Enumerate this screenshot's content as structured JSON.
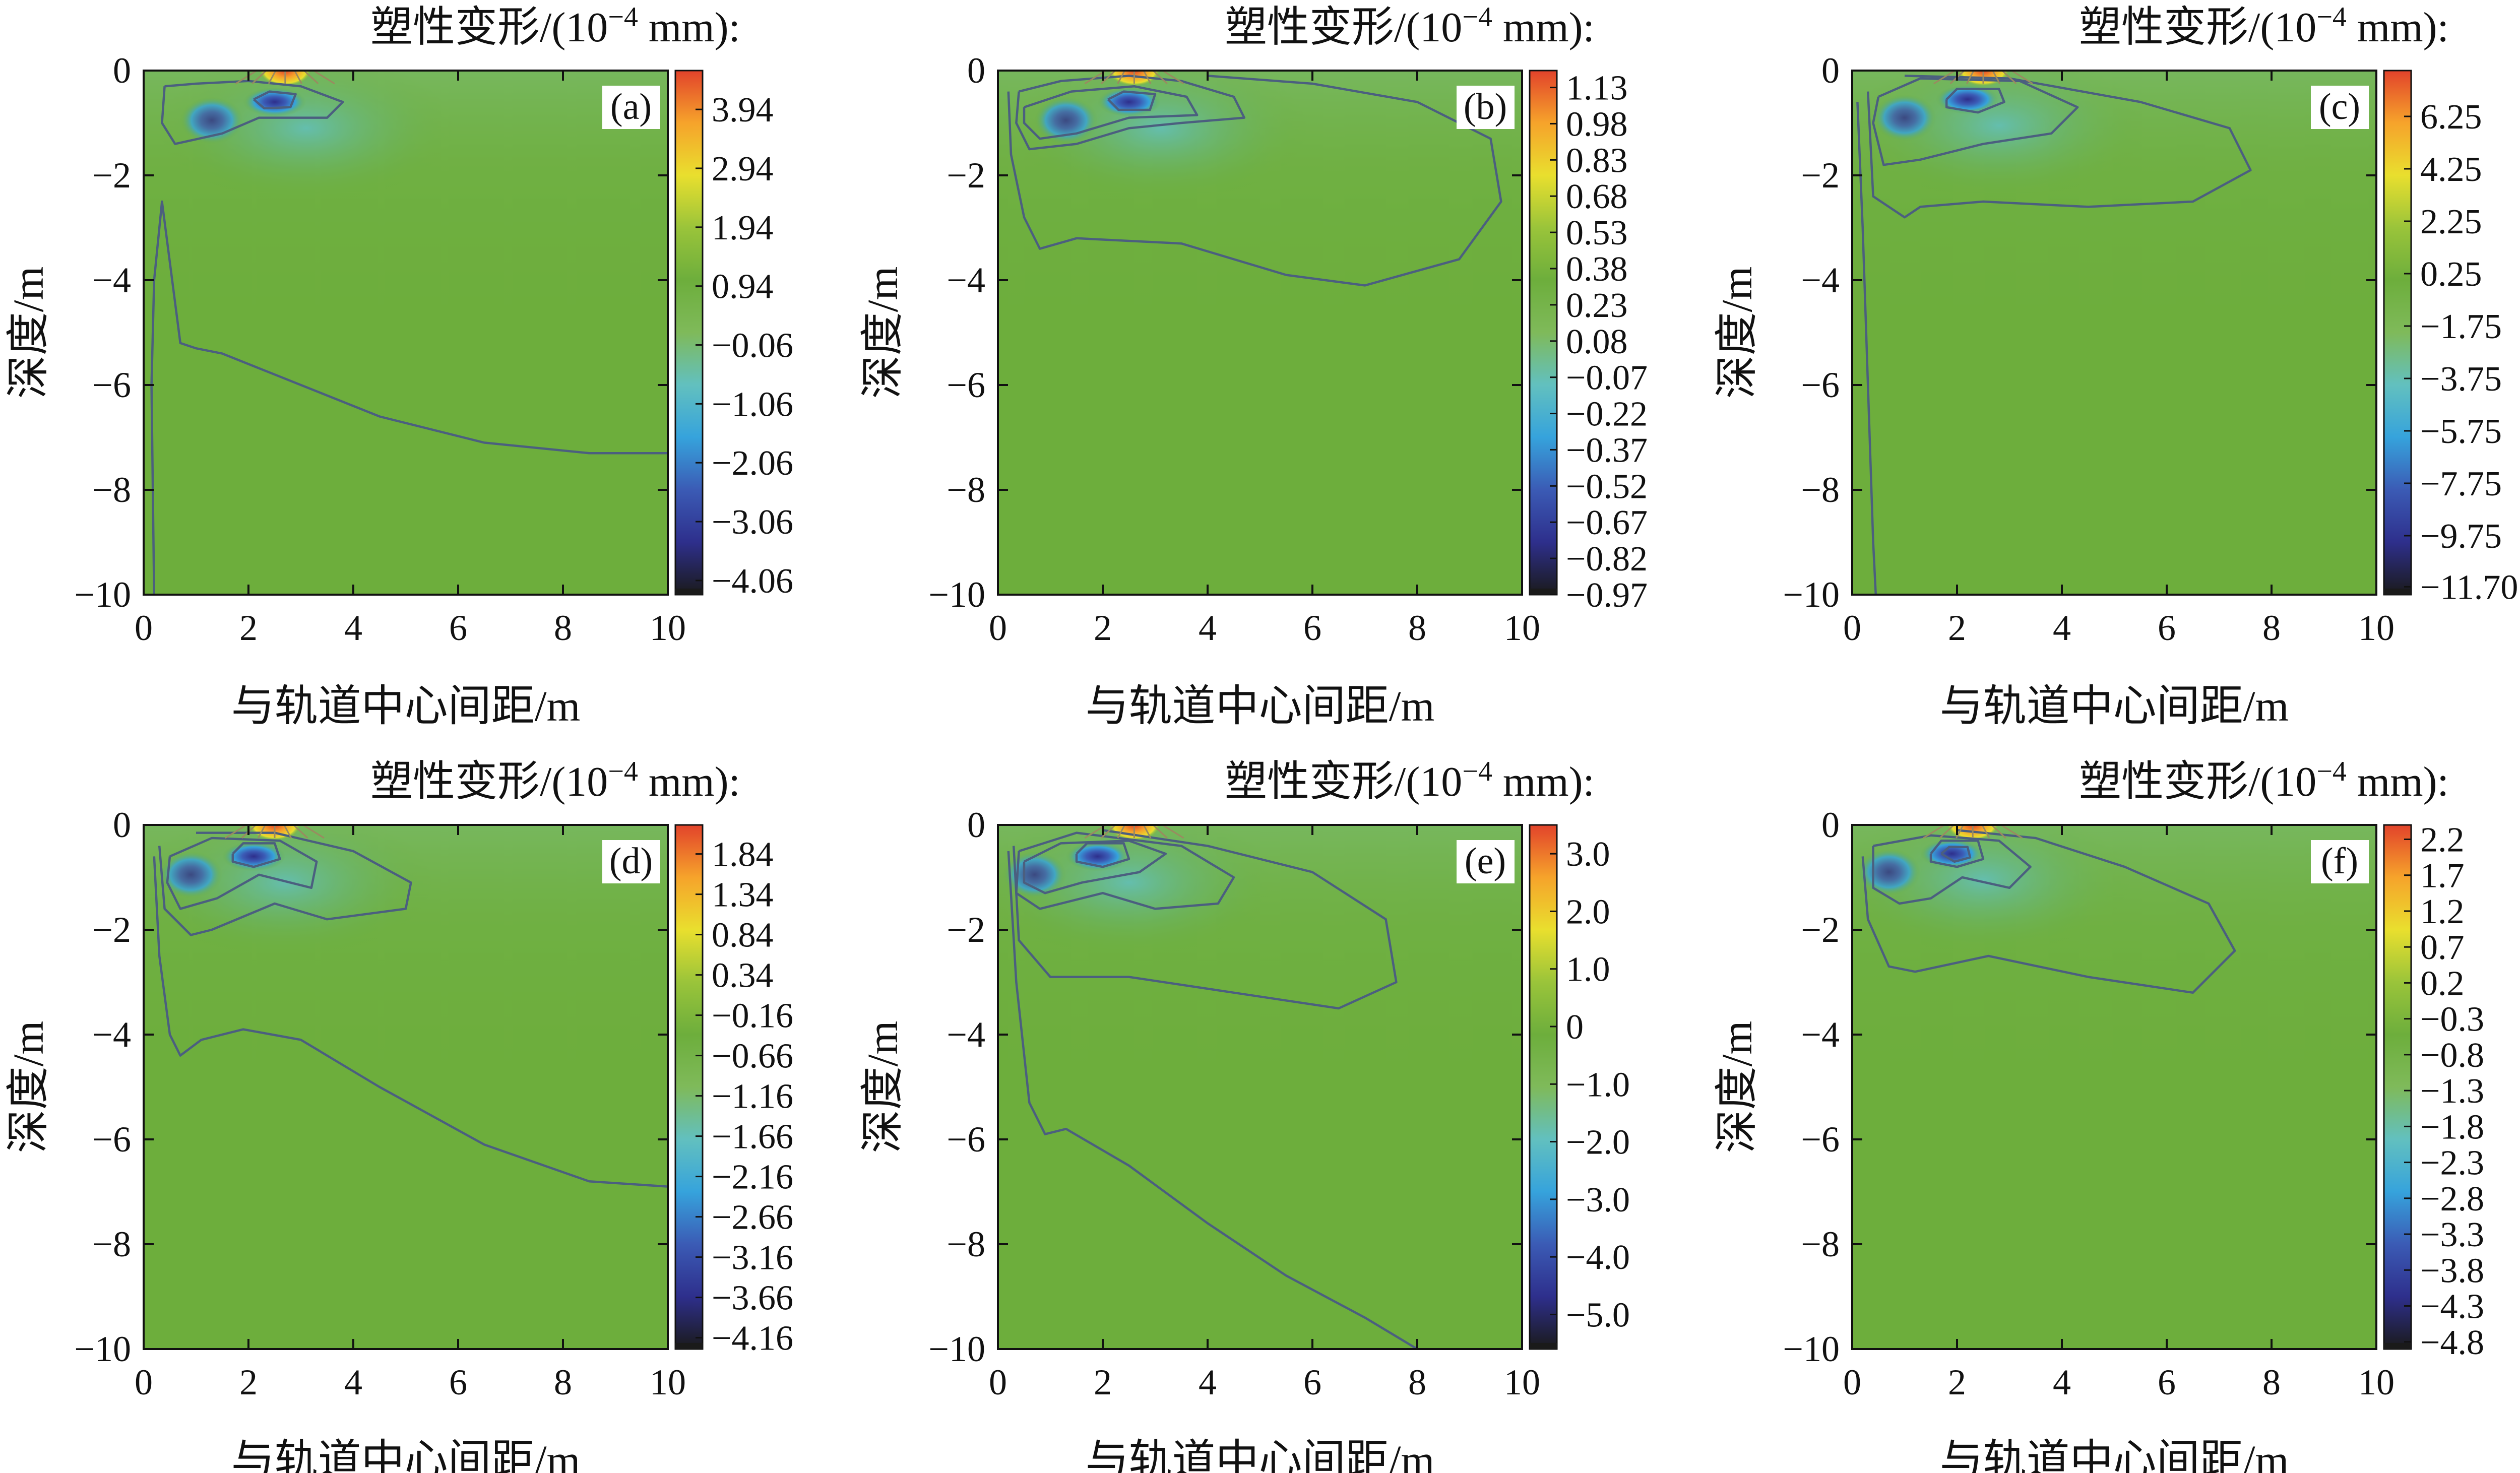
{
  "colorbar_title_prefix": "塑性变形/(10",
  "colorbar_title_exponent": "−4",
  "colorbar_title_suffix": " mm):",
  "xlabel": "与轨道中心间距/m",
  "ylabel": "深度/m",
  "x_ticks": [
    "0",
    "2",
    "4",
    "6",
    "8",
    "10"
  ],
  "y_ticks": [
    "0",
    "−2",
    "−4",
    "−6",
    "−8",
    "−10"
  ],
  "colors": {
    "background_field": "#6dae3c",
    "contour_line": "#4b5f7f",
    "colormap": [
      "#1a1a1a",
      "#2e2f8c",
      "#3b5bb5",
      "#36a3dc",
      "#62c0bf",
      "#7fba5a",
      "#6dae3c",
      "#9ac43a",
      "#e9df2e",
      "#f6a32b",
      "#e2432b"
    ]
  },
  "chart_data": [
    {
      "type": "heatmap",
      "panel": "(a)",
      "xlabel": "与轨道中心间距/m",
      "ylabel": "深度/m",
      "xlim": [
        0,
        10
      ],
      "ylim": [
        -10,
        0
      ],
      "colorbar_ticks": [
        "3.94",
        "2.94",
        "1.94",
        "0.94",
        "−0.06",
        "−1.06",
        "−2.06",
        "−3.06",
        "−4.06"
      ],
      "colorbar_range": [
        -4.3,
        4.6
      ],
      "minimum": {
        "x": 2.5,
        "depth": -0.6,
        "value": -4.06
      },
      "maximum": {
        "x": 2.7,
        "depth": 0.0,
        "value": 3.94
      },
      "contours": [
        [
          [
            0.2,
            -10
          ],
          [
            0.15,
            -6
          ],
          [
            0.2,
            -4
          ],
          [
            0.35,
            -2.5
          ],
          [
            0.7,
            -5.2
          ],
          [
            1.0,
            -5.3
          ],
          [
            1.5,
            -5.4
          ],
          [
            2.5,
            -5.8
          ],
          [
            4.5,
            -6.6
          ],
          [
            6.5,
            -7.1
          ],
          [
            8.5,
            -7.3
          ],
          [
            10.0,
            -7.3
          ]
        ],
        [
          [
            0.4,
            -0.3
          ],
          [
            0.35,
            -1.0
          ],
          [
            0.6,
            -1.4
          ],
          [
            1.5,
            -1.2
          ],
          [
            2.2,
            -0.9
          ],
          [
            3.5,
            -0.9
          ],
          [
            3.8,
            -0.6
          ],
          [
            3.0,
            -0.3
          ],
          [
            2.0,
            -0.2
          ],
          [
            1.0,
            -0.25
          ],
          [
            0.4,
            -0.3
          ]
        ],
        [
          [
            2.1,
            -0.55
          ],
          [
            2.4,
            -0.4
          ],
          [
            2.9,
            -0.45
          ],
          [
            2.8,
            -0.7
          ],
          [
            2.3,
            -0.72
          ],
          [
            2.1,
            -0.55
          ]
        ]
      ]
    },
    {
      "type": "heatmap",
      "panel": "(b)",
      "xlabel": "与轨道中心间距/m",
      "ylabel": "深度/m",
      "xlim": [
        0,
        10
      ],
      "ylim": [
        -10,
        0
      ],
      "colorbar_ticks": [
        "1.13",
        "0.98",
        "0.83",
        "0.68",
        "0.53",
        "0.38",
        "0.23",
        "0.08",
        "−0.07",
        "−0.22",
        "−0.37",
        "−0.52",
        "−0.67",
        "−0.82",
        "−0.97"
      ],
      "colorbar_range": [
        -0.97,
        1.2
      ],
      "minimum": {
        "x": 2.5,
        "depth": -0.6,
        "value": -0.97
      },
      "maximum": {
        "x": 2.6,
        "depth": 0.0,
        "value": 1.13
      },
      "contours": [
        [
          [
            0.2,
            -0.4
          ],
          [
            0.25,
            -1.6
          ],
          [
            0.5,
            -2.8
          ],
          [
            0.8,
            -3.4
          ],
          [
            1.5,
            -3.2
          ],
          [
            3.5,
            -3.3
          ],
          [
            5.5,
            -3.9
          ],
          [
            7.0,
            -4.1
          ],
          [
            8.8,
            -3.6
          ],
          [
            9.6,
            -2.5
          ],
          [
            9.4,
            -1.3
          ],
          [
            8.0,
            -0.6
          ],
          [
            6.0,
            -0.25
          ],
          [
            4.0,
            -0.1
          ]
        ],
        [
          [
            0.4,
            -0.4
          ],
          [
            0.35,
            -1.0
          ],
          [
            0.6,
            -1.5
          ],
          [
            1.5,
            -1.4
          ],
          [
            2.5,
            -1.1
          ],
          [
            3.5,
            -1.0
          ],
          [
            4.7,
            -0.9
          ],
          [
            4.5,
            -0.5
          ],
          [
            3.5,
            -0.2
          ],
          [
            2.5,
            -0.1
          ],
          [
            1.2,
            -0.2
          ],
          [
            0.4,
            -0.4
          ]
        ],
        [
          [
            0.5,
            -0.7
          ],
          [
            0.5,
            -1.0
          ],
          [
            0.8,
            -1.3
          ],
          [
            1.5,
            -1.2
          ],
          [
            2.5,
            -0.9
          ],
          [
            3.8,
            -0.85
          ],
          [
            3.6,
            -0.5
          ],
          [
            2.6,
            -0.3
          ],
          [
            1.4,
            -0.4
          ],
          [
            0.5,
            -0.7
          ]
        ],
        [
          [
            2.1,
            -0.55
          ],
          [
            2.4,
            -0.4
          ],
          [
            3.0,
            -0.45
          ],
          [
            2.9,
            -0.75
          ],
          [
            2.3,
            -0.75
          ],
          [
            2.1,
            -0.55
          ]
        ]
      ]
    },
    {
      "type": "heatmap",
      "panel": "(c)",
      "xlabel": "与轨道中心间距/m",
      "ylabel": "深度/m",
      "xlim": [
        0,
        10
      ],
      "ylim": [
        -10,
        0
      ],
      "colorbar_ticks": [
        "6.25",
        "4.25",
        "2.25",
        "0.25",
        "−1.75",
        "−3.75",
        "−5.75",
        "−7.75",
        "−9.75",
        "−11.70"
      ],
      "colorbar_range": [
        -12.0,
        8.0
      ],
      "minimum": {
        "x": 2.2,
        "depth": -0.55,
        "value": -11.7
      },
      "maximum": {
        "x": 2.5,
        "depth": 0.0,
        "value": 6.25
      },
      "contours": [
        [
          [
            0.1,
            -0.6
          ],
          [
            0.2,
            -3.0
          ],
          [
            0.3,
            -6.0
          ],
          [
            0.4,
            -9.0
          ],
          [
            0.45,
            -10.0
          ]
        ],
        [
          [
            0.3,
            -0.4
          ],
          [
            0.4,
            -2.4
          ],
          [
            1.0,
            -2.8
          ],
          [
            1.3,
            -2.6
          ],
          [
            2.5,
            -2.5
          ],
          [
            4.5,
            -2.6
          ],
          [
            6.5,
            -2.5
          ],
          [
            7.6,
            -1.9
          ],
          [
            7.2,
            -1.1
          ],
          [
            5.5,
            -0.6
          ],
          [
            3.0,
            -0.15
          ],
          [
            1.0,
            -0.1
          ]
        ],
        [
          [
            0.5,
            -0.5
          ],
          [
            0.4,
            -1.0
          ],
          [
            0.6,
            -1.8
          ],
          [
            1.3,
            -1.7
          ],
          [
            2.5,
            -1.4
          ],
          [
            3.8,
            -1.2
          ],
          [
            4.3,
            -0.7
          ],
          [
            3.2,
            -0.2
          ],
          [
            1.3,
            -0.15
          ],
          [
            0.5,
            -0.5
          ]
        ],
        [
          [
            1.8,
            -0.55
          ],
          [
            2.0,
            -0.35
          ],
          [
            2.8,
            -0.35
          ],
          [
            2.9,
            -0.6
          ],
          [
            2.4,
            -0.8
          ],
          [
            1.8,
            -0.7
          ],
          [
            1.8,
            -0.55
          ]
        ]
      ]
    },
    {
      "type": "heatmap",
      "panel": "(d)",
      "xlabel": "与轨道中心间距/m",
      "ylabel": "深度/m",
      "xlim": [
        0,
        10
      ],
      "ylim": [
        -10,
        0
      ],
      "colorbar_ticks": [
        "1.84",
        "1.34",
        "0.84",
        "0.34",
        "−0.16",
        "−0.66",
        "−1.16",
        "−1.66",
        "−2.16",
        "−2.66",
        "−3.16",
        "−3.66",
        "−4.16"
      ],
      "colorbar_range": [
        -4.3,
        2.2
      ],
      "minimum": {
        "x": 2.1,
        "depth": -0.6,
        "value": -4.16
      },
      "maximum": {
        "x": 2.5,
        "depth": 0.0,
        "value": 1.84
      },
      "contours": [
        [
          [
            0.2,
            -0.6
          ],
          [
            0.3,
            -2.5
          ],
          [
            0.5,
            -4.0
          ],
          [
            0.7,
            -4.4
          ],
          [
            1.1,
            -4.1
          ],
          [
            1.9,
            -3.9
          ],
          [
            3.0,
            -4.1
          ],
          [
            4.5,
            -5.0
          ],
          [
            6.5,
            -6.1
          ],
          [
            8.5,
            -6.8
          ],
          [
            10.0,
            -6.9
          ]
        ],
        [
          [
            0.3,
            -0.4
          ],
          [
            0.4,
            -1.6
          ],
          [
            0.9,
            -2.1
          ],
          [
            1.3,
            -2.0
          ],
          [
            2.5,
            -1.5
          ],
          [
            3.5,
            -1.8
          ],
          [
            5.0,
            -1.6
          ],
          [
            5.1,
            -1.1
          ],
          [
            4.0,
            -0.5
          ],
          [
            2.5,
            -0.15
          ],
          [
            1.0,
            -0.15
          ]
        ],
        [
          [
            0.5,
            -0.6
          ],
          [
            0.45,
            -1.1
          ],
          [
            0.7,
            -1.6
          ],
          [
            1.4,
            -1.4
          ],
          [
            2.2,
            -0.95
          ],
          [
            3.2,
            -1.2
          ],
          [
            3.3,
            -0.7
          ],
          [
            2.6,
            -0.3
          ],
          [
            1.3,
            -0.25
          ],
          [
            0.5,
            -0.6
          ]
        ],
        [
          [
            1.7,
            -0.55
          ],
          [
            1.9,
            -0.35
          ],
          [
            2.5,
            -0.35
          ],
          [
            2.6,
            -0.65
          ],
          [
            2.1,
            -0.8
          ],
          [
            1.7,
            -0.7
          ],
          [
            1.7,
            -0.55
          ]
        ]
      ]
    },
    {
      "type": "heatmap",
      "panel": "(e)",
      "xlabel": "与轨道中心间距/m",
      "ylabel": "深度/m",
      "xlim": [
        0,
        10
      ],
      "ylim": [
        -10,
        0
      ],
      "colorbar_ticks": [
        "3.0",
        "2.0",
        "1.0",
        "0",
        "−1.0",
        "−2.0",
        "−3.0",
        "−4.0",
        "−5.0"
      ],
      "colorbar_range": [
        -5.6,
        3.5
      ],
      "minimum": {
        "x": 1.9,
        "depth": -0.6,
        "value": -5.0
      },
      "maximum": {
        "x": 2.6,
        "depth": 0.0,
        "value": 3.0
      },
      "contours": [
        [
          [
            0.2,
            -0.5
          ],
          [
            0.35,
            -3.0
          ],
          [
            0.6,
            -5.3
          ],
          [
            0.9,
            -5.9
          ],
          [
            1.3,
            -5.8
          ],
          [
            2.5,
            -6.5
          ],
          [
            4.0,
            -7.6
          ],
          [
            5.5,
            -8.6
          ],
          [
            7.0,
            -9.4
          ],
          [
            8.0,
            -10.0
          ]
        ],
        [
          [
            0.3,
            -0.4
          ],
          [
            0.4,
            -2.2
          ],
          [
            1.0,
            -2.9
          ],
          [
            2.5,
            -2.9
          ],
          [
            4.5,
            -3.2
          ],
          [
            6.5,
            -3.5
          ],
          [
            7.6,
            -3.0
          ],
          [
            7.4,
            -1.8
          ],
          [
            6.0,
            -0.9
          ],
          [
            4.0,
            -0.4
          ],
          [
            2.0,
            -0.1
          ]
        ],
        [
          [
            0.4,
            -0.5
          ],
          [
            0.35,
            -1.3
          ],
          [
            0.8,
            -1.6
          ],
          [
            2.0,
            -1.3
          ],
          [
            3.0,
            -1.6
          ],
          [
            4.2,
            -1.5
          ],
          [
            4.5,
            -1.0
          ],
          [
            3.5,
            -0.4
          ],
          [
            1.5,
            -0.15
          ],
          [
            0.4,
            -0.5
          ]
        ],
        [
          [
            0.5,
            -0.7
          ],
          [
            0.5,
            -1.1
          ],
          [
            0.9,
            -1.3
          ],
          [
            1.6,
            -1.1
          ],
          [
            2.7,
            -0.9
          ],
          [
            3.2,
            -0.55
          ],
          [
            2.5,
            -0.3
          ],
          [
            1.2,
            -0.35
          ],
          [
            0.5,
            -0.7
          ]
        ],
        [
          [
            1.5,
            -0.55
          ],
          [
            1.7,
            -0.35
          ],
          [
            2.4,
            -0.35
          ],
          [
            2.5,
            -0.65
          ],
          [
            2.0,
            -0.8
          ],
          [
            1.5,
            -0.7
          ],
          [
            1.5,
            -0.55
          ]
        ]
      ]
    },
    {
      "type": "heatmap",
      "panel": "(f)",
      "xlabel": "与轨道中心间距/m",
      "ylabel": "深度/m",
      "xlim": [
        0,
        10
      ],
      "ylim": [
        -10,
        0
      ],
      "colorbar_ticks": [
        "2.2",
        "1.7",
        "1.2",
        "0.7",
        "0.2",
        "−0.3",
        "−0.8",
        "−1.3",
        "−1.8",
        "−2.3",
        "−2.8",
        "−3.3",
        "−3.8",
        "−4.3",
        "−4.8"
      ],
      "colorbar_range": [
        -4.9,
        2.4
      ],
      "minimum": {
        "x": 1.9,
        "depth": -0.55,
        "value": -4.8
      },
      "maximum": {
        "x": 2.3,
        "depth": 0.0,
        "value": 2.2
      },
      "contours": [
        [
          [
            0.2,
            -0.6
          ],
          [
            0.3,
            -1.8
          ],
          [
            0.7,
            -2.7
          ],
          [
            1.2,
            -2.8
          ],
          [
            2.6,
            -2.5
          ],
          [
            4.5,
            -2.9
          ],
          [
            6.5,
            -3.2
          ],
          [
            7.3,
            -2.4
          ],
          [
            6.8,
            -1.5
          ],
          [
            5.2,
            -0.8
          ],
          [
            3.5,
            -0.25
          ],
          [
            2.0,
            -0.1
          ]
        ],
        [
          [
            0.4,
            -0.4
          ],
          [
            0.4,
            -1.2
          ],
          [
            0.9,
            -1.5
          ],
          [
            1.5,
            -1.4
          ],
          [
            2.1,
            -1.0
          ],
          [
            3.0,
            -1.2
          ],
          [
            3.4,
            -0.8
          ],
          [
            2.8,
            -0.3
          ],
          [
            1.5,
            -0.2
          ],
          [
            0.4,
            -0.4
          ]
        ],
        [
          [
            1.5,
            -0.55
          ],
          [
            1.7,
            -0.3
          ],
          [
            2.4,
            -0.3
          ],
          [
            2.5,
            -0.65
          ],
          [
            2.0,
            -0.8
          ],
          [
            1.5,
            -0.7
          ],
          [
            1.5,
            -0.55
          ]
        ],
        [
          [
            1.7,
            -0.55
          ],
          [
            1.85,
            -0.42
          ],
          [
            2.2,
            -0.42
          ],
          [
            2.25,
            -0.62
          ],
          [
            1.95,
            -0.7
          ],
          [
            1.7,
            -0.55
          ]
        ]
      ]
    }
  ]
}
